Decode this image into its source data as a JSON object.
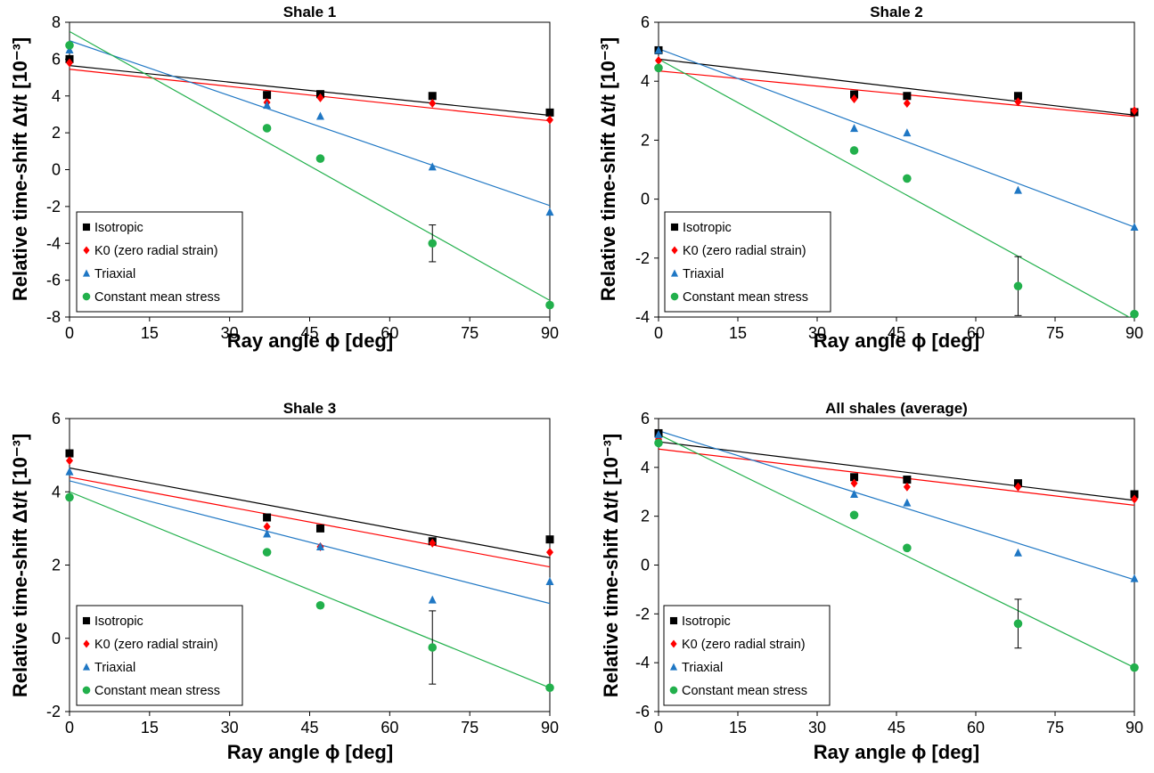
{
  "legend": {
    "items": [
      {
        "label": "Isotropic",
        "color": "#000000",
        "marker": "square"
      },
      {
        "label": "K0 (zero radial strain)",
        "color": "#ff0000",
        "marker": "diamond"
      },
      {
        "label": "Triaxial",
        "color": "#1f77c4",
        "marker": "triangle"
      },
      {
        "label": "Constant mean stress",
        "color": "#22b04c",
        "marker": "circle"
      }
    ],
    "placement": "bottom-left"
  },
  "chart_data": [
    {
      "type": "scatter",
      "title": "Shale 1",
      "xlabel": "Ray angle ϕ [deg]",
      "ylabel": "Relative time-shift Δt/t [10⁻³]",
      "xlim": [
        0,
        90
      ],
      "ylim": [
        -8,
        8
      ],
      "xticks": [
        0,
        15,
        30,
        45,
        60,
        75,
        90
      ],
      "yticks": [
        -8,
        -6,
        -4,
        -2,
        0,
        2,
        4,
        6,
        8
      ],
      "x": [
        0,
        37,
        47,
        68,
        90
      ],
      "grid": false,
      "series": [
        {
          "name": "Isotropic",
          "values": [
            6.0,
            4.05,
            4.1,
            4.0,
            3.1
          ],
          "fit": [
            5.65,
            2.95
          ]
        },
        {
          "name": "K0 (zero radial strain)",
          "values": [
            5.8,
            3.65,
            3.9,
            3.6,
            2.7
          ],
          "fit": [
            5.45,
            2.65
          ]
        },
        {
          "name": "Triaxial",
          "values": [
            6.5,
            3.5,
            2.9,
            0.15,
            -2.3
          ],
          "fit": [
            7.0,
            -1.95
          ]
        },
        {
          "name": "Constant mean stress",
          "values": [
            6.75,
            2.25,
            0.6,
            -4.0,
            -7.35
          ],
          "fit": [
            7.5,
            -7.1
          ]
        }
      ],
      "error_bar": {
        "series": "Constant mean stress",
        "x": 68,
        "low": -5.0,
        "high": -3.0
      }
    },
    {
      "type": "scatter",
      "title": "Shale 2",
      "xlabel": "Ray angle ϕ [deg]",
      "ylabel": "Relative time-shift Δt/t [10⁻³]",
      "xlim": [
        0,
        90
      ],
      "ylim": [
        -4,
        6
      ],
      "xticks": [
        0,
        15,
        30,
        45,
        60,
        75,
        90
      ],
      "yticks": [
        -4,
        -2,
        0,
        2,
        4,
        6
      ],
      "x": [
        0,
        37,
        47,
        68,
        90
      ],
      "grid": false,
      "series": [
        {
          "name": "Isotropic",
          "values": [
            5.05,
            3.55,
            3.5,
            3.5,
            2.95
          ],
          "fit": [
            4.75,
            2.85
          ]
        },
        {
          "name": "K0 (zero radial strain)",
          "values": [
            4.7,
            3.4,
            3.25,
            3.3,
            3.0
          ],
          "fit": [
            4.35,
            2.8
          ]
        },
        {
          "name": "Triaxial",
          "values": [
            5.05,
            2.4,
            2.25,
            0.3,
            -0.95
          ],
          "fit": [
            5.1,
            -0.95
          ]
        },
        {
          "name": "Constant mean stress",
          "values": [
            4.45,
            1.65,
            0.7,
            -2.95,
            -3.9
          ],
          "fit": [
            4.75,
            -4.1
          ]
        }
      ],
      "error_bar": {
        "series": "Constant mean stress",
        "x": 68,
        "low": -3.95,
        "high": -1.95
      }
    },
    {
      "type": "scatter",
      "title": "Shale 3",
      "xlabel": "Ray angle ϕ [deg]",
      "ylabel": "Relative time-shift Δt/t [10⁻³]",
      "xlim": [
        0,
        90
      ],
      "ylim": [
        -2,
        6
      ],
      "xticks": [
        0,
        15,
        30,
        45,
        60,
        75,
        90
      ],
      "yticks": [
        -2,
        0,
        2,
        4,
        6
      ],
      "x": [
        0,
        37,
        47,
        68,
        90
      ],
      "grid": false,
      "series": [
        {
          "name": "Isotropic",
          "values": [
            5.05,
            3.3,
            3.0,
            2.65,
            2.7
          ],
          "fit": [
            4.65,
            2.2
          ]
        },
        {
          "name": "K0 (zero radial strain)",
          "values": [
            4.85,
            3.05,
            2.5,
            2.6,
            2.35
          ],
          "fit": [
            4.4,
            1.95
          ]
        },
        {
          "name": "Triaxial",
          "values": [
            4.55,
            2.85,
            2.5,
            1.05,
            1.55
          ],
          "fit": [
            4.3,
            0.95
          ]
        },
        {
          "name": "Constant mean stress",
          "values": [
            3.85,
            2.35,
            0.9,
            -0.25,
            -1.35
          ],
          "fit": [
            4.0,
            -1.35
          ]
        }
      ],
      "error_bar": {
        "series": "Constant mean stress",
        "x": 68,
        "low": -1.25,
        "high": 0.75
      }
    },
    {
      "type": "scatter",
      "title": "All shales (average)",
      "xlabel": "Ray angle ϕ [deg]",
      "ylabel": "Relative time-shift Δt/t [10⁻³]",
      "xlim": [
        0,
        90
      ],
      "ylim": [
        -6,
        6
      ],
      "xticks": [
        0,
        15,
        30,
        45,
        60,
        75,
        90
      ],
      "yticks": [
        -6,
        -4,
        -2,
        0,
        2,
        4,
        6
      ],
      "x": [
        0,
        37,
        47,
        68,
        90
      ],
      "grid": false,
      "series": [
        {
          "name": "Isotropic",
          "values": [
            5.4,
            3.6,
            3.5,
            3.35,
            2.9
          ],
          "fit": [
            5.05,
            2.65
          ]
        },
        {
          "name": "K0 (zero radial strain)",
          "values": [
            5.15,
            3.35,
            3.2,
            3.2,
            2.7
          ],
          "fit": [
            4.75,
            2.45
          ]
        },
        {
          "name": "Triaxial",
          "values": [
            5.35,
            2.9,
            2.55,
            0.5,
            -0.55
          ],
          "fit": [
            5.5,
            -0.6
          ]
        },
        {
          "name": "Constant mean stress",
          "values": [
            5.0,
            2.05,
            0.7,
            -2.4,
            -4.2
          ],
          "fit": [
            5.35,
            -4.2
          ]
        }
      ],
      "error_bar": {
        "series": "Constant mean stress",
        "x": 68,
        "low": -3.4,
        "high": -1.4
      }
    }
  ]
}
